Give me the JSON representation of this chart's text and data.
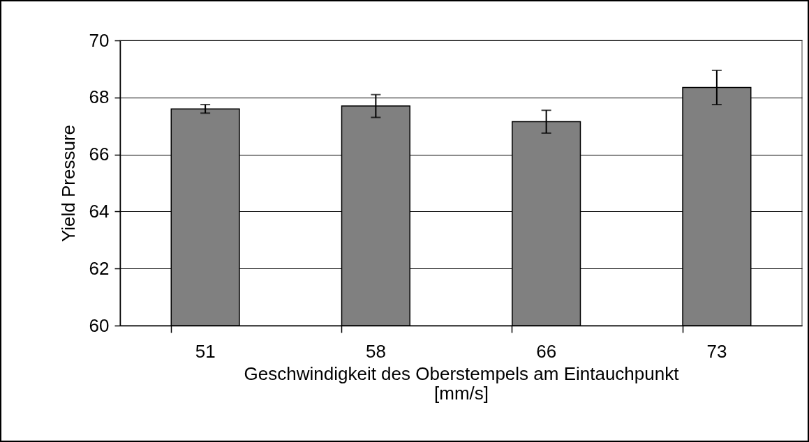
{
  "chart_data": {
    "type": "bar",
    "xlabel": "Geschwindigkeit des Oberstempels am Eintauchpunkt\n[mm/s]",
    "ylabel": "Yield Pressure",
    "categories": [
      "51",
      "58",
      "66",
      "73"
    ],
    "values": [
      67.6,
      67.7,
      67.15,
      68.35
    ],
    "errors": [
      0.15,
      0.4,
      0.4,
      0.6
    ],
    "color": "#808080",
    "ylim": [
      60,
      70
    ],
    "yticks": [
      60,
      62,
      64,
      66,
      68,
      70
    ],
    "grid": "y"
  }
}
